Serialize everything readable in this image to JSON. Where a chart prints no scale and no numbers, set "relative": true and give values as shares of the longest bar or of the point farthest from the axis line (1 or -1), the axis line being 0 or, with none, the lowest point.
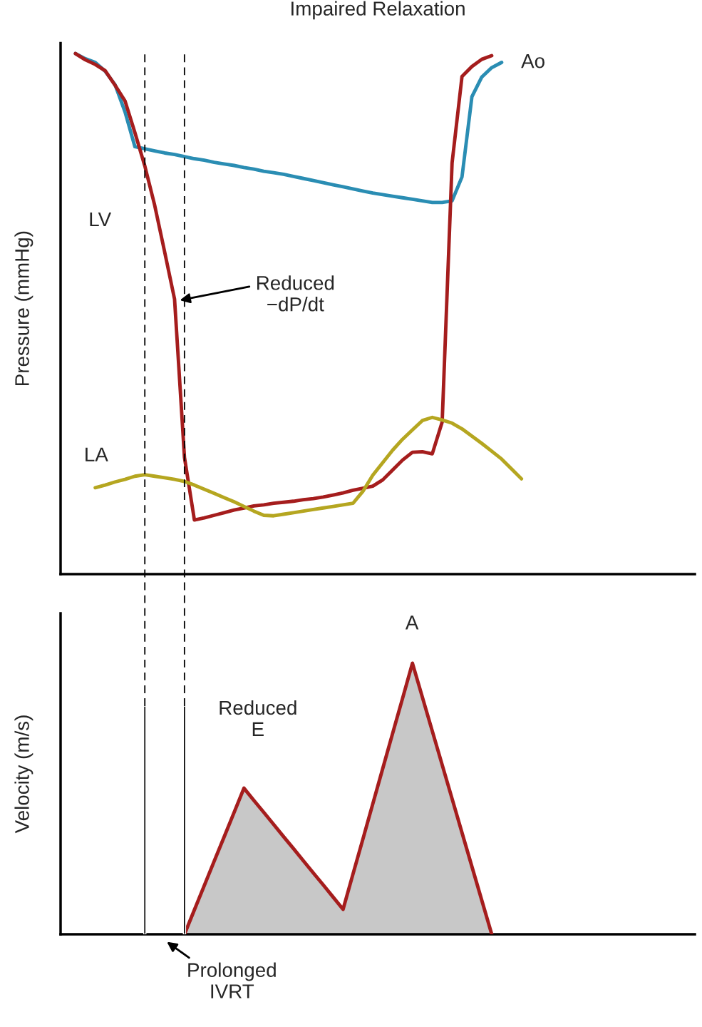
{
  "chart_data": [
    {
      "type": "line",
      "title": "Impaired Relaxation",
      "ylabel": "Pressure (mmHg)",
      "relative": true,
      "legend": false,
      "categories": [
        null,
        null,
        null,
        null,
        null,
        null,
        null,
        null,
        null,
        null,
        null,
        null,
        null,
        null,
        null,
        null,
        null,
        null,
        null,
        null,
        null,
        null,
        null,
        null,
        null,
        null,
        null,
        null,
        null,
        null,
        null,
        null,
        null,
        null,
        null,
        null,
        null,
        null,
        null,
        null,
        null,
        null,
        null,
        null,
        null,
        null,
        null,
        null,
        null,
        null,
        null,
        null,
        null,
        null,
        null,
        null,
        null,
        null,
        null,
        null,
        null,
        null,
        null,
        null
      ],
      "series": [
        {
          "color": "#2a8db3",
          "values": [
            null,
            1.0,
            0.99,
            0.983,
            0.966,
            0.94,
            0.888,
            0.821,
            0.817,
            0.813,
            0.809,
            0.806,
            0.802,
            0.798,
            0.795,
            0.791,
            0.788,
            0.785,
            0.781,
            0.778,
            0.774,
            0.771,
            0.768,
            0.764,
            0.76,
            0.756,
            0.752,
            0.748,
            0.744,
            0.74,
            0.736,
            0.732,
            0.729,
            0.726,
            0.723,
            0.72,
            0.717,
            0.714,
            0.714,
            0.717,
            0.763,
            0.917,
            0.955,
            0.973,
            0.983,
            null,
            null,
            null,
            null,
            null,
            null,
            null,
            null,
            null,
            null,
            null,
            null,
            null,
            null,
            null,
            null,
            null,
            null,
            null
          ]
        },
        {
          "color": "#a51d1d",
          "values": [
            null,
            1.0,
            0.988,
            0.979,
            0.967,
            0.939,
            0.909,
            0.848,
            0.784,
            0.708,
            0.619,
            0.528,
            0.224,
            0.104,
            0.108,
            0.113,
            0.118,
            0.123,
            0.127,
            0.131,
            0.133,
            0.136,
            0.138,
            0.14,
            0.143,
            0.145,
            0.148,
            0.152,
            0.156,
            0.161,
            0.165,
            0.169,
            0.181,
            0.2,
            0.219,
            0.234,
            0.235,
            0.231,
            0.292,
            0.79,
            0.956,
            0.975,
            0.989,
            0.996,
            null,
            null,
            null,
            null,
            null,
            null,
            null,
            null,
            null,
            null,
            null,
            null,
            null,
            null,
            null,
            null,
            null,
            null,
            null,
            null
          ]
        },
        {
          "color": "#b5a620",
          "values": [
            null,
            null,
            null,
            0.166,
            0.171,
            0.177,
            0.182,
            0.188,
            0.191,
            0.188,
            0.185,
            0.182,
            0.178,
            0.171,
            0.163,
            0.155,
            0.147,
            0.139,
            0.13,
            0.121,
            0.113,
            0.112,
            0.115,
            0.118,
            0.121,
            0.124,
            0.127,
            0.13,
            0.133,
            0.136,
            0.159,
            0.19,
            0.214,
            0.238,
            0.259,
            0.277,
            0.295,
            0.301,
            0.296,
            0.29,
            0.279,
            0.265,
            0.251,
            0.236,
            0.221,
            0.202,
            0.183,
            null,
            null,
            null,
            null,
            null,
            null,
            null,
            null,
            null,
            null,
            null,
            null,
            null,
            null,
            null,
            null,
            null
          ]
        }
      ],
      "annotations": [
        "LV",
        "LA",
        "Ao",
        "Reduced\n−dP/dt"
      ]
    },
    {
      "type": "area",
      "ylabel": "Velocity (m/s)",
      "relative": true,
      "legend": false,
      "categories": [
        null,
        null,
        null,
        null,
        null,
        null,
        null,
        null,
        null,
        null,
        null,
        null,
        null,
        null,
        null,
        null,
        null,
        null,
        null,
        null,
        null,
        null,
        null,
        null,
        null,
        null,
        null,
        null,
        null,
        null,
        null,
        null,
        null,
        null,
        null,
        null,
        null,
        null,
        null,
        null,
        null,
        null,
        null,
        null,
        null,
        null,
        null,
        null,
        null,
        null,
        null,
        null,
        null,
        null,
        null,
        null,
        null,
        null,
        null,
        null,
        null,
        null,
        null,
        null
      ],
      "series": [
        {
          "type": "area",
          "color": "#a51d1d",
          "values": [
            null,
            null,
            null,
            null,
            null,
            null,
            null,
            null,
            null,
            null,
            null,
            null,
            0,
            0.09,
            0.18,
            0.27,
            0.359,
            0.449,
            0.539,
            0.494,
            0.45,
            0.405,
            0.36,
            0.316,
            0.271,
            0.226,
            0.182,
            0.137,
            0.092,
            0.222,
            0.351,
            0.481,
            0.611,
            0.741,
            0.87,
            1.0,
            0.875,
            0.75,
            0.625,
            0.5,
            0.375,
            0.25,
            0.125,
            0,
            null,
            null,
            null,
            null,
            null,
            null,
            null,
            null,
            null,
            null,
            null,
            null,
            null,
            null,
            null,
            null,
            null,
            null,
            null,
            null
          ]
        },
        {
          "type": "bar",
          "color": "#000000",
          "values": [
            null,
            null,
            null,
            null,
            null,
            null,
            null,
            null,
            0.842,
            null,
            null,
            null,
            0.842,
            null,
            null,
            null,
            null,
            null,
            null,
            null,
            null,
            null,
            null,
            null,
            null,
            null,
            null,
            null,
            null,
            null,
            null,
            null,
            null,
            null,
            null,
            null,
            null,
            null,
            null,
            null,
            null,
            null,
            null,
            null,
            null,
            null,
            null,
            null,
            null,
            null,
            null,
            null,
            null,
            null,
            null,
            null,
            null,
            null,
            null,
            null,
            null,
            null,
            null,
            null
          ]
        }
      ],
      "annotations": [
        "A",
        "Reduced\nE",
        "Prolonged\nIVRT"
      ]
    }
  ]
}
